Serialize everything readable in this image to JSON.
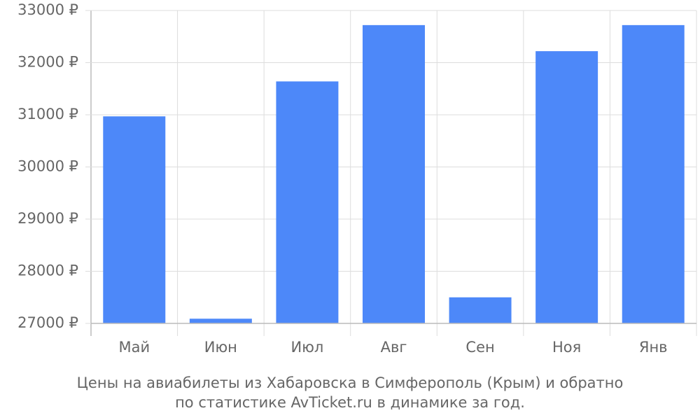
{
  "chart_data": {
    "type": "bar",
    "title": [
      "Цены на авиабилеты из Хабаровска в Симферополь (Крым) и обратно",
      "по статистике AvTicket.ru в динамике за год."
    ],
    "categories": [
      "Май",
      "Июн",
      "Июл",
      "Авг",
      "Сен",
      "Ноя",
      "Янв"
    ],
    "values": [
      30970,
      27090,
      31640,
      32720,
      27500,
      32220,
      32720
    ],
    "color": "#4d88f9",
    "ylim": [
      27000,
      33000
    ],
    "yticks": [
      {
        "value": 27000,
        "label": "27000 ₽"
      },
      {
        "value": 28000,
        "label": "28000 ₽"
      },
      {
        "value": 29000,
        "label": "29000 ₽"
      },
      {
        "value": 30000,
        "label": "30000 ₽"
      },
      {
        "value": 31000,
        "label": "31000 ₽"
      },
      {
        "value": 32000,
        "label": "32000 ₽"
      },
      {
        "value": 33000,
        "label": "33000 ₽"
      }
    ],
    "grid": true
  }
}
